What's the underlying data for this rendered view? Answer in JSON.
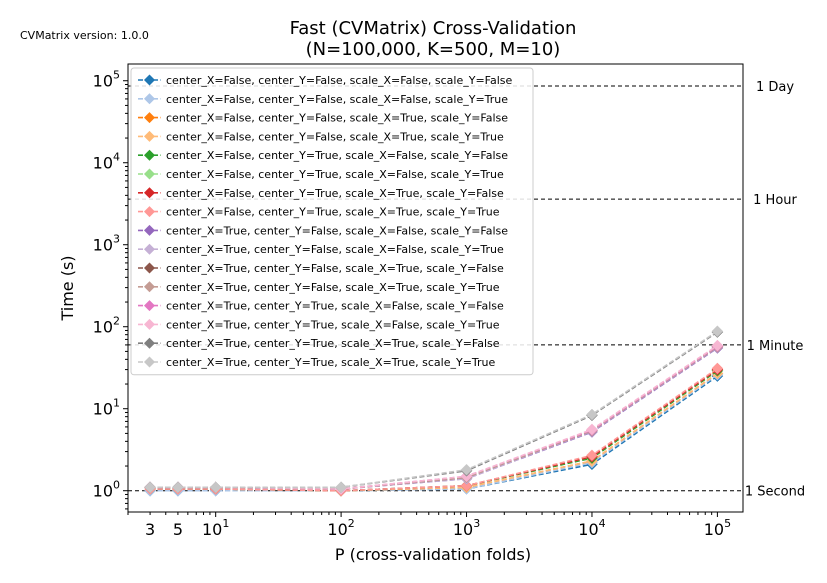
{
  "chart_data": {
    "type": "line",
    "title": "Fast (CVMatrix) Cross-Validation",
    "subtitle": "(N=100,000, K=500, M=10)",
    "version_note": "CVMatrix version: 1.0.0",
    "xlabel": "P (cross-validation folds)",
    "ylabel": "Time (s)",
    "xscale": "log",
    "yscale": "log",
    "xlim": [
      2.0,
      160000
    ],
    "ylim": [
      0.55,
      160000
    ],
    "x": [
      3,
      5,
      10,
      100,
      1000,
      10000,
      100000
    ],
    "x_tick_labels": [
      {
        "value": 3,
        "base": "3",
        "exp": ""
      },
      {
        "value": 5,
        "base": "5",
        "exp": ""
      },
      {
        "value": 10,
        "base": "10",
        "exp": "1"
      },
      {
        "value": 100,
        "base": "10",
        "exp": "2"
      },
      {
        "value": 1000,
        "base": "10",
        "exp": "3"
      },
      {
        "value": 10000,
        "base": "10",
        "exp": "4"
      },
      {
        "value": 100000,
        "base": "10",
        "exp": "5"
      }
    ],
    "y_tick_labels": [
      {
        "value": 1,
        "base": "10",
        "exp": "0"
      },
      {
        "value": 10,
        "base": "10",
        "exp": "1"
      },
      {
        "value": 100,
        "base": "10",
        "exp": "2"
      },
      {
        "value": 1000,
        "base": "10",
        "exp": "3"
      },
      {
        "value": 10000,
        "base": "10",
        "exp": "4"
      },
      {
        "value": 100000,
        "base": "10",
        "exp": "5"
      }
    ],
    "reference_lines": [
      {
        "value": 1,
        "label": "1 Second"
      },
      {
        "value": 60,
        "label": "1 Minute"
      },
      {
        "value": 3600,
        "label": "1 Hour"
      },
      {
        "value": 86400,
        "label": "1 Day"
      }
    ],
    "legend_position": "upper-left",
    "grid": false,
    "series": [
      {
        "name": "center_X=False, center_Y=False, scale_X=False, scale_Y=False",
        "color": "#1f77b4",
        "values": [
          1.0,
          1.0,
          1.0,
          1.0,
          1.05,
          2.1,
          25
        ]
      },
      {
        "name": "center_X=False, center_Y=False, scale_X=False, scale_Y=True",
        "color": "#aec7e8",
        "values": [
          1.0,
          1.0,
          1.0,
          1.0,
          1.05,
          2.2,
          26
        ]
      },
      {
        "name": "center_X=False, center_Y=False, scale_X=True, scale_Y=False",
        "color": "#ff7f0e",
        "values": [
          1.05,
          1.05,
          1.05,
          1.0,
          1.1,
          2.3,
          27
        ]
      },
      {
        "name": "center_X=False, center_Y=False, scale_X=True, scale_Y=True",
        "color": "#ffbb78",
        "values": [
          1.05,
          1.05,
          1.05,
          1.0,
          1.1,
          2.3,
          27
        ]
      },
      {
        "name": "center_X=False, center_Y=True, scale_X=False, scale_Y=False",
        "color": "#2ca02c",
        "values": [
          1.05,
          1.05,
          1.05,
          1.0,
          1.15,
          2.5,
          29
        ]
      },
      {
        "name": "center_X=False, center_Y=True, scale_X=False, scale_Y=True",
        "color": "#98df8a",
        "values": [
          1.05,
          1.05,
          1.05,
          1.0,
          1.15,
          2.6,
          30
        ]
      },
      {
        "name": "center_X=False, center_Y=True, scale_X=True, scale_Y=False",
        "color": "#d62728",
        "values": [
          1.05,
          1.05,
          1.05,
          1.0,
          1.15,
          2.6,
          30
        ]
      },
      {
        "name": "center_X=False, center_Y=True, scale_X=True, scale_Y=True",
        "color": "#ff9896",
        "values": [
          1.05,
          1.05,
          1.05,
          1.0,
          1.15,
          2.7,
          31
        ]
      },
      {
        "name": "center_X=True, center_Y=False, scale_X=False, scale_Y=False",
        "color": "#9467bd",
        "values": [
          1.1,
          1.1,
          1.1,
          1.05,
          1.4,
          5.2,
          55
        ]
      },
      {
        "name": "center_X=True, center_Y=False, scale_X=False, scale_Y=True",
        "color": "#c5b0d5",
        "values": [
          1.1,
          1.1,
          1.1,
          1.05,
          1.4,
          5.3,
          56
        ]
      },
      {
        "name": "center_X=True, center_Y=False, scale_X=True, scale_Y=False",
        "color": "#8c564b",
        "values": [
          1.1,
          1.1,
          1.1,
          1.05,
          1.45,
          5.4,
          57
        ]
      },
      {
        "name": "center_X=True, center_Y=False, scale_X=True, scale_Y=True",
        "color": "#c49c94",
        "values": [
          1.1,
          1.1,
          1.1,
          1.05,
          1.45,
          5.4,
          57
        ]
      },
      {
        "name": "center_X=True, center_Y=True, scale_X=False, scale_Y=False",
        "color": "#e377c2",
        "values": [
          1.1,
          1.1,
          1.1,
          1.05,
          1.5,
          5.5,
          58
        ]
      },
      {
        "name": "center_X=True, center_Y=True, scale_X=False, scale_Y=True",
        "color": "#f7b6d2",
        "values": [
          1.1,
          1.1,
          1.1,
          1.05,
          1.5,
          5.6,
          59
        ]
      },
      {
        "name": "center_X=True, center_Y=True, scale_X=True, scale_Y=False",
        "color": "#7f7f7f",
        "values": [
          1.1,
          1.1,
          1.1,
          1.1,
          1.75,
          8.3,
          86
        ]
      },
      {
        "name": "center_X=True, center_Y=True, scale_X=True, scale_Y=True",
        "color": "#c7c7c7",
        "values": [
          1.1,
          1.1,
          1.1,
          1.1,
          1.8,
          8.5,
          88
        ]
      }
    ]
  }
}
